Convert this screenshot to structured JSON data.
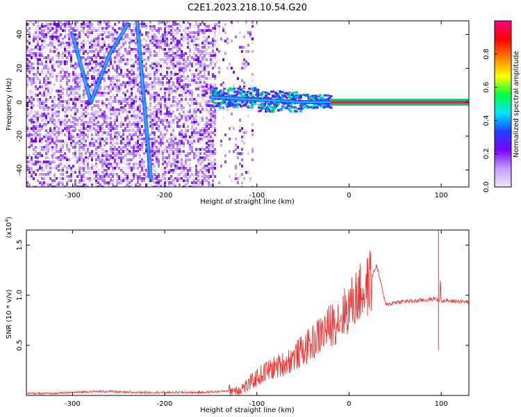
{
  "figure_title": "C2E1.2023.218.10.54.G20",
  "chart_data": [
    {
      "type": "heatmap",
      "title": "C2E1.2023.218.10.54.G20",
      "xlabel": "Height of straight line (km)",
      "ylabel": "Frequency (Hz)",
      "xlim": [
        -350,
        130
      ],
      "ylim": [
        -50,
        48
      ],
      "x_ticks": [
        -300,
        -200,
        -100,
        0,
        100
      ],
      "y_ticks": [
        -40,
        -20,
        0,
        20,
        40
      ],
      "grid": false,
      "colorbar": {
        "label": "Normalized spectral amplitude",
        "range": [
          0,
          1
        ],
        "ticks": [
          0.0,
          0.2,
          0.4,
          0.6,
          0.8
        ],
        "colors": [
          "#eee6ff",
          "#c49cff",
          "#7a00ff",
          "#2040ff",
          "#00e6ff",
          "#00ff40",
          "#ffff00",
          "#ff8000",
          "#ff0000",
          "#ff0080"
        ]
      },
      "features": [
        {
          "name": "descending streak",
          "points": [
            [
              -300,
              40
            ],
            [
              -280,
              0
            ]
          ]
        },
        {
          "name": "ascending streak",
          "points": [
            [
              -280,
              0
            ],
            [
              -260,
              28
            ],
            [
              -240,
              46
            ]
          ]
        },
        {
          "name": "steep streak",
          "points": [
            [
              -230,
              48
            ],
            [
              -215,
              -45
            ]
          ]
        },
        {
          "name": "central band",
          "points": [
            [
              -150,
              3
            ],
            [
              -50,
              0
            ],
            [
              -20,
              0
            ],
            [
              130,
              0
            ]
          ]
        }
      ]
    },
    {
      "type": "line",
      "xlabel": "Height of straight line (km)",
      "ylabel": "SNR (10 * v/v)",
      "ylabel_multiplier": "(x10",
      "ylabel_multiplier_exp": "4",
      "xlim": [
        -350,
        130
      ],
      "ylim": [
        0,
        1.65
      ],
      "x_ticks": [
        -300,
        -200,
        -100,
        0,
        100
      ],
      "y_ticks": [
        0.5,
        1.0,
        1.5
      ],
      "grid": false,
      "series": [
        {
          "color": "#ee3333",
          "x": [
            -350,
            -320,
            -300,
            -280,
            -260,
            -240,
            -220,
            -200,
            -180,
            -160,
            -140,
            -120,
            -110,
            -100,
            -90,
            -80,
            -70,
            -60,
            -50,
            -40,
            -30,
            -20,
            -10,
            0,
            10,
            20,
            30,
            40,
            50,
            60,
            70,
            80,
            90,
            95,
            97,
            100,
            110,
            120,
            130
          ],
          "y": [
            0.02,
            0.02,
            0.03,
            0.04,
            0.04,
            0.03,
            0.03,
            0.03,
            0.03,
            0.03,
            0.04,
            0.06,
            0.1,
            0.18,
            0.24,
            0.28,
            0.32,
            0.38,
            0.45,
            0.52,
            0.62,
            0.7,
            0.78,
            0.88,
            1.0,
            1.08,
            1.3,
            0.9,
            0.93,
            0.94,
            0.94,
            0.95,
            0.96,
            0.97,
            1.6,
            0.95,
            0.94,
            0.94,
            0.93
          ]
        }
      ],
      "spikes": [
        {
          "x": 10,
          "y": 1.18
        },
        {
          "x": 97,
          "y": 1.65
        },
        {
          "x": 97,
          "y": 0.45
        }
      ]
    }
  ]
}
